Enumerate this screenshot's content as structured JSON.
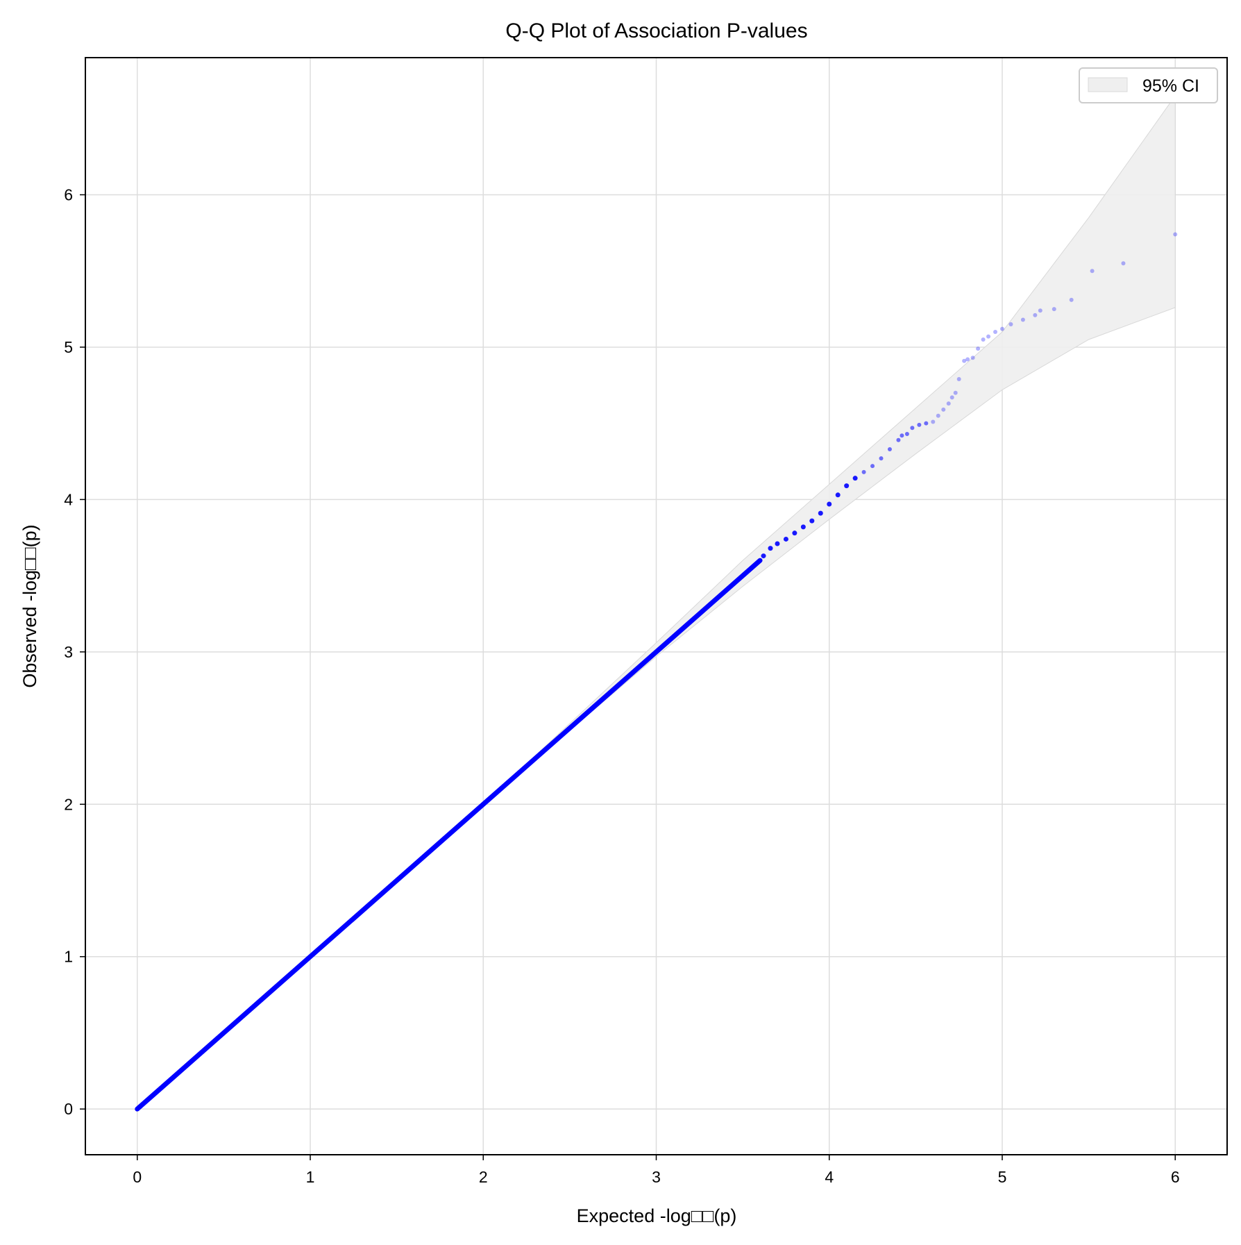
{
  "chart_data": {
    "type": "scatter",
    "title": "Q-Q Plot of Association P-values",
    "xlabel": "Expected -log□□(p)",
    "ylabel": "Observed -log□□(p)",
    "xlim": [
      -0.3,
      6.3
    ],
    "ylim": [
      -0.3,
      6.9
    ],
    "xticks": [
      0,
      1,
      2,
      3,
      4,
      5,
      6
    ],
    "yticks": [
      0,
      1,
      2,
      3,
      4,
      5,
      6
    ],
    "xtick_labels": [
      "0",
      "1",
      "2",
      "3",
      "4",
      "5",
      "6"
    ],
    "ytick_labels": [
      "0",
      "1",
      "2",
      "3",
      "4",
      "5",
      "6"
    ],
    "grid": true,
    "legend": {
      "position": "top-right",
      "entries": [
        {
          "label": "95% CI",
          "color": "#efefef"
        }
      ]
    },
    "ci_band": {
      "x": [
        0,
        1,
        2,
        3,
        3.5,
        4,
        4.5,
        5,
        5.5,
        6
      ],
      "lower": [
        0,
        1,
        2,
        2.97,
        3.43,
        3.87,
        4.3,
        4.72,
        5.05,
        5.26
      ],
      "upper": [
        0,
        1,
        2,
        3.06,
        3.6,
        4.1,
        4.6,
        5.1,
        5.85,
        6.65
      ]
    },
    "series": [
      {
        "color": "#0000ff",
        "dense_range": [
          0,
          3.6
        ],
        "x": [
          3.62,
          3.66,
          3.7,
          3.75,
          3.8,
          3.85,
          3.9,
          3.95,
          4.0,
          4.05,
          4.1,
          4.15,
          4.2,
          4.25,
          4.3,
          4.35,
          4.4,
          4.42,
          4.45,
          4.48,
          4.52,
          4.56,
          4.6,
          4.63,
          4.66,
          4.69,
          4.71,
          4.73,
          4.75,
          4.78,
          4.8,
          4.83,
          4.86,
          4.89,
          4.92,
          4.96,
          5.0,
          5.05,
          5.12,
          5.19,
          5.22,
          5.3,
          5.4,
          5.52,
          5.7,
          6.0
        ],
        "y": [
          3.63,
          3.68,
          3.71,
          3.74,
          3.78,
          3.82,
          3.86,
          3.91,
          3.97,
          4.03,
          4.09,
          4.14,
          4.18,
          4.22,
          4.27,
          4.33,
          4.39,
          4.42,
          4.43,
          4.47,
          4.49,
          4.5,
          4.51,
          4.55,
          4.59,
          4.63,
          4.67,
          4.7,
          4.79,
          4.91,
          4.92,
          4.93,
          4.99,
          5.05,
          5.07,
          5.1,
          5.12,
          5.15,
          5.18,
          5.21,
          5.24,
          5.25,
          5.31,
          5.5,
          5.55,
          5.74
        ]
      }
    ]
  }
}
